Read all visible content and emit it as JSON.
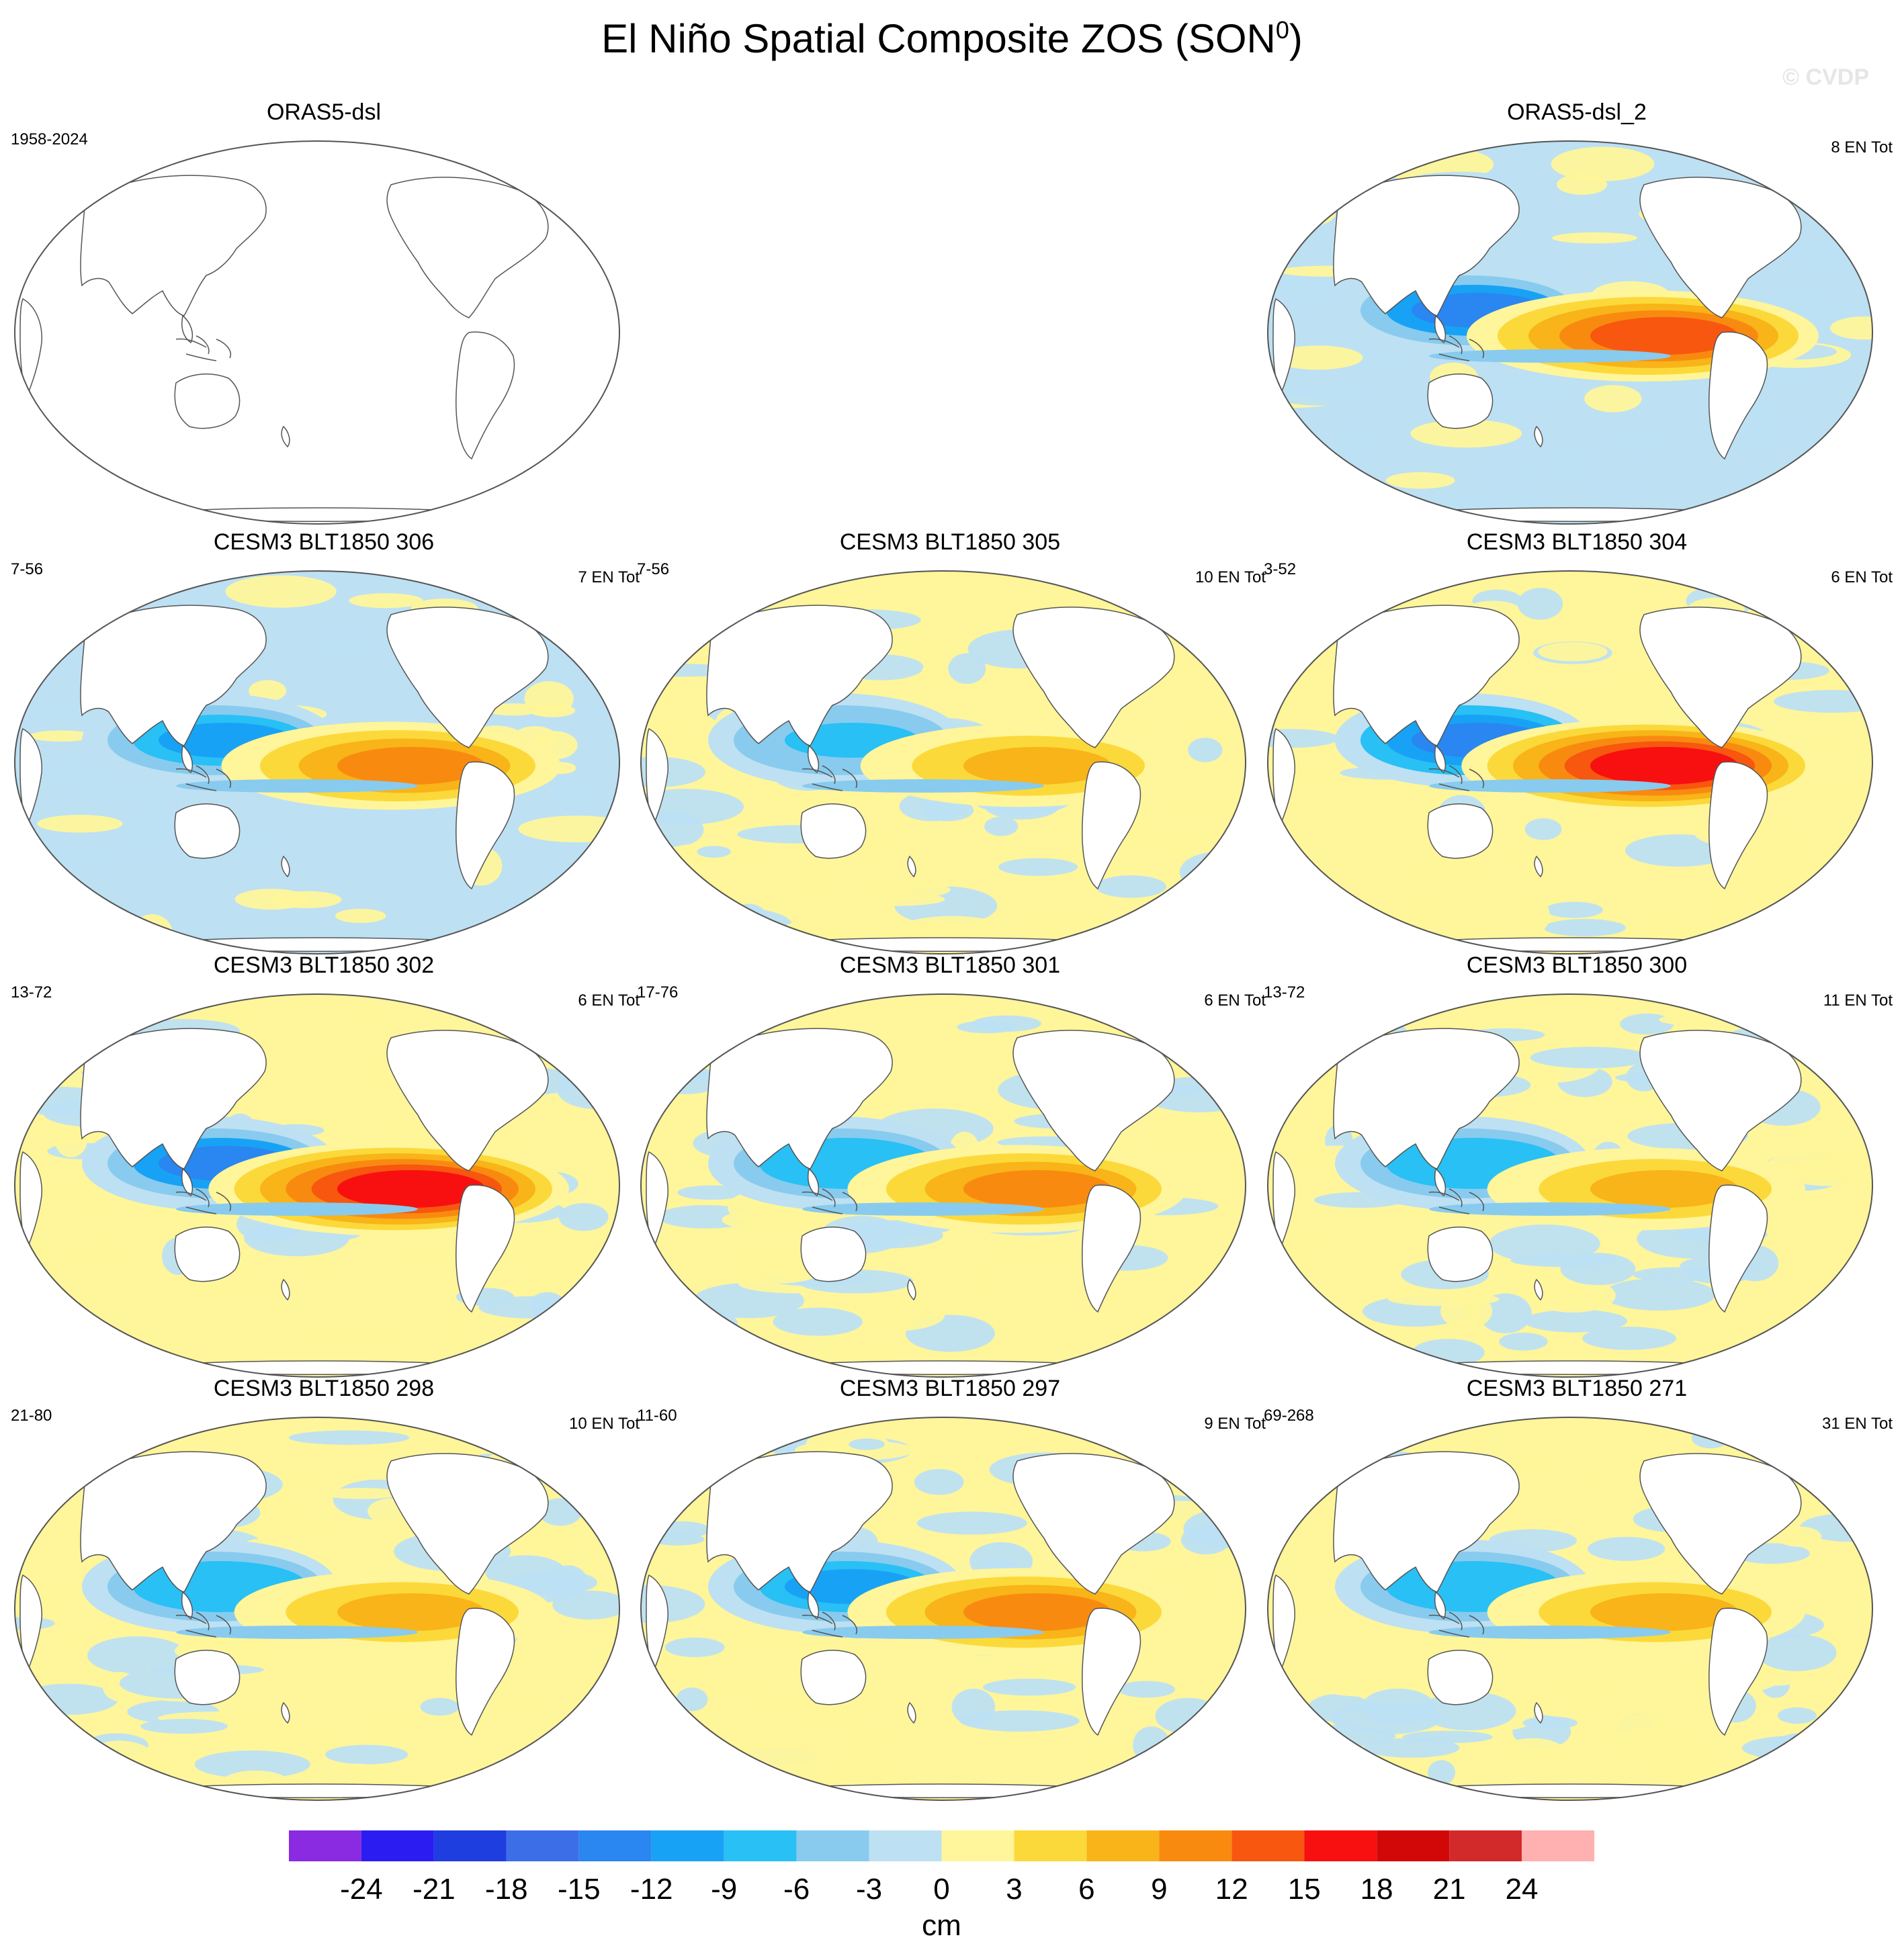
{
  "title": "El Niño Spatial Composite ZOS (SON",
  "title_superscript": "0",
  "title_close": ")",
  "watermark": "© CVDP",
  "chart_data": {
    "type": "heatmap",
    "variable": "ZOS",
    "season": "SON",
    "projection": "Robinson, Pacific-centered",
    "panels": [
      {
        "id": "orasdsl",
        "title": "ORAS5-dsl",
        "left_label": "1958-2024",
        "right_label": "",
        "empty": true,
        "nino_max": 0,
        "wpac_min": 0,
        "bg": 0
      },
      {
        "id": "oras2",
        "title": "ORAS5-dsl_2",
        "left_label": "",
        "right_label": "8 EN Tot",
        "empty": false,
        "nino_max": 16,
        "wpac_min": -13,
        "bg": 0.3
      },
      {
        "id": "p306",
        "title": "CESM3 BLT1850 306",
        "left_label": "7-56",
        "right_label": "7 EN Tot",
        "empty": false,
        "nino_max": 13,
        "wpac_min": -11,
        "bg": 0.4
      },
      {
        "id": "p305",
        "title": "CESM3 BLT1850 305",
        "left_label": "7-56",
        "right_label": "10 EN Tot",
        "empty": false,
        "nino_max": 9,
        "wpac_min": -8,
        "bg": 0.5
      },
      {
        "id": "p304",
        "title": "CESM3 BLT1850 304",
        "left_label": "3-52",
        "right_label": "6 EN Tot",
        "empty": false,
        "nino_max": 17,
        "wpac_min": -14,
        "bg": 0.6
      },
      {
        "id": "p302",
        "title": "CESM3 BLT1850 302",
        "left_label": "13-72",
        "right_label": "6 EN Tot",
        "empty": false,
        "nino_max": 19,
        "wpac_min": -13,
        "bg": 0.55
      },
      {
        "id": "p301",
        "title": "CESM3 BLT1850 301",
        "left_label": "17-76",
        "right_label": "6 EN Tot",
        "empty": false,
        "nino_max": 11,
        "wpac_min": -9,
        "bg": 0.5
      },
      {
        "id": "p300",
        "title": "CESM3 BLT1850 300",
        "left_label": "13-72",
        "right_label": "11 EN Tot",
        "empty": false,
        "nino_max": 10,
        "wpac_min": -9,
        "bg": 0.45
      },
      {
        "id": "p298",
        "title": "CESM3 BLT1850 298",
        "left_label": "21-80",
        "right_label": "10 EN Tot",
        "empty": false,
        "nino_max": 10,
        "wpac_min": -9,
        "bg": 0.55
      },
      {
        "id": "p297",
        "title": "CESM3 BLT1850 297",
        "left_label": "11-60",
        "right_label": "9 EN Tot",
        "empty": false,
        "nino_max": 11,
        "wpac_min": -10,
        "bg": 0.5
      },
      {
        "id": "p271",
        "title": "CESM3 BLT1850 271",
        "left_label": "69-268",
        "right_label": "31 EN Tot",
        "empty": false,
        "nino_max": 10,
        "wpac_min": -9,
        "bg": 0.45
      }
    ],
    "colorbar": {
      "levels": [
        "-24",
        "-21",
        "-18",
        "-15",
        "-12",
        "-9",
        "-6",
        "-3",
        "0",
        "3",
        "6",
        "9",
        "12",
        "15",
        "18",
        "21",
        "24"
      ],
      "colors": [
        "#8a2be2",
        "#2b1df2",
        "#1e3ee0",
        "#3c6ee8",
        "#2a86f0",
        "#18a2f5",
        "#28c0f5",
        "#88cbee",
        "#bde0f3",
        "#fff59a",
        "#fcd93a",
        "#f8b418",
        "#f98a10",
        "#f7570f",
        "#f81010",
        "#d20808",
        "#d22a2a",
        "#ffb0b0"
      ],
      "unit": "cm"
    }
  }
}
